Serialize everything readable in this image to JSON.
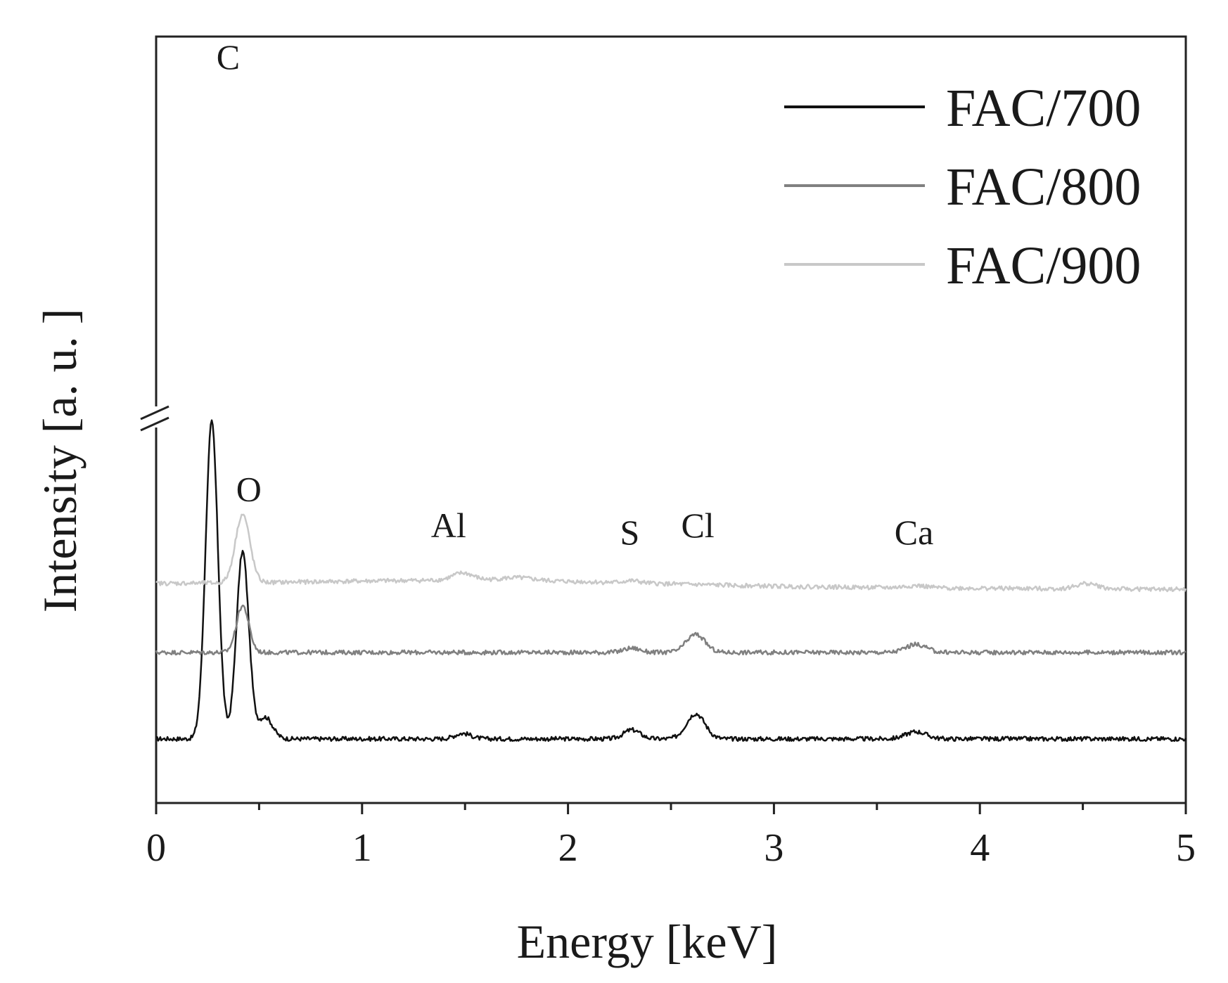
{
  "chart_data": {
    "type": "line",
    "xlabel": "Energy [keV]",
    "ylabel": "Intensity [a. u. ]",
    "xlim": [
      0,
      5
    ],
    "x_ticks": [
      "0",
      "1",
      "2",
      "3",
      "4",
      "5"
    ],
    "y_axis_break": true,
    "legend_position": "top-right",
    "series": [
      {
        "name": "FAC/700",
        "color": "#111111",
        "baseline": 10,
        "peaks": [
          {
            "energy": 0.27,
            "height": 88,
            "width": 0.03
          },
          {
            "energy": 0.42,
            "height": 52,
            "width": 0.03
          },
          {
            "energy": 0.53,
            "height": 6,
            "width": 0.035
          },
          {
            "energy": 1.49,
            "height": 1.5,
            "width": 0.04
          },
          {
            "energy": 2.31,
            "height": 2.5,
            "width": 0.04
          },
          {
            "energy": 2.62,
            "height": 7.0,
            "width": 0.045
          },
          {
            "energy": 3.69,
            "height": 2.0,
            "width": 0.05
          }
        ]
      },
      {
        "name": "FAC/800",
        "color": "#808080",
        "baseline": 34,
        "peaks": [
          {
            "energy": 0.42,
            "height": 13,
            "width": 0.03
          },
          {
            "energy": 2.31,
            "height": 1.2,
            "width": 0.04
          },
          {
            "energy": 2.62,
            "height": 5.0,
            "width": 0.045
          },
          {
            "energy": 3.69,
            "height": 2.2,
            "width": 0.05
          }
        ]
      },
      {
        "name": "FAC/900",
        "color": "#c8c8c8",
        "baseline": 53,
        "peaks": [
          {
            "energy": 0.42,
            "height": 19,
            "width": 0.035
          },
          {
            "energy": 1.49,
            "height": 2.0,
            "width": 0.05
          },
          {
            "energy": 1.75,
            "height": 0.8,
            "width": 0.08
          },
          {
            "energy": 2.31,
            "height": 0.6,
            "width": 0.04
          },
          {
            "energy": 3.69,
            "height": 0.6,
            "width": 0.05
          },
          {
            "energy": 4.52,
            "height": 1.5,
            "width": 0.05
          }
        ]
      }
    ],
    "annotations": [
      {
        "text": "C",
        "energy": 0.35,
        "level": 196
      },
      {
        "text": "O",
        "energy": 0.45,
        "level": 76
      },
      {
        "text": "Al",
        "energy": 1.42,
        "level": 66
      },
      {
        "text": "S",
        "energy": 2.3,
        "level": 64
      },
      {
        "text": "Cl",
        "energy": 2.63,
        "level": 66
      },
      {
        "text": "Ca",
        "energy": 3.68,
        "level": 64
      }
    ]
  }
}
